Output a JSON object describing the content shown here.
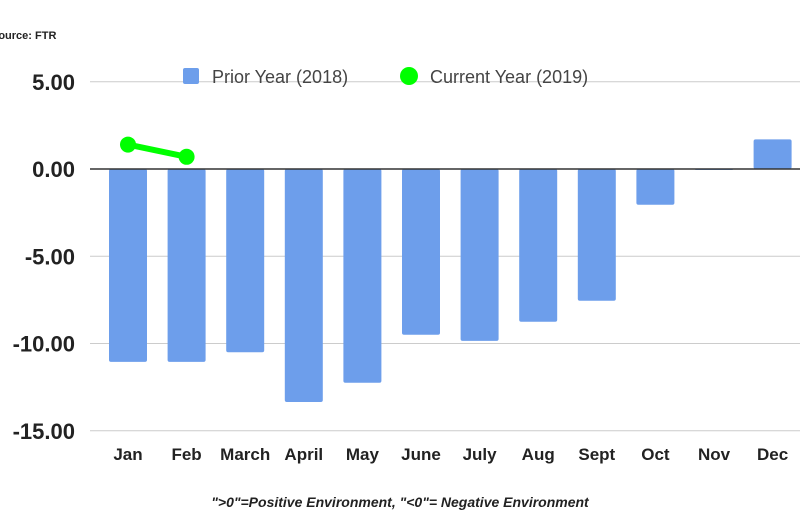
{
  "source": "Source: FTR",
  "footnote": "\">0\"=Positive Environment, \"<0\"= Negative Environment",
  "chart_data": {
    "type": "bar",
    "categories": [
      "Jan",
      "Feb",
      "March",
      "April",
      "May",
      "June",
      "July",
      "Aug",
      "Sept",
      "Oct",
      "Nov",
      "Dec"
    ],
    "series": [
      {
        "name": "Prior Year (2018)",
        "kind": "bar",
        "color": "#6d9eeb",
        "values": [
          -11.05,
          -11.05,
          -10.5,
          -13.35,
          -12.25,
          -9.5,
          -9.85,
          -8.75,
          -7.55,
          -2.05,
          -0.03,
          1.7
        ]
      },
      {
        "name": "Current Year (2019)",
        "kind": "line",
        "color": "#00ff00",
        "values": [
          1.4,
          0.7,
          null,
          null,
          null,
          null,
          null,
          null,
          null,
          null,
          null,
          null
        ]
      }
    ],
    "yticks": [
      "5.00",
      "0.00",
      "-5.00",
      "-10.00",
      "-15.00"
    ],
    "ytick_values": [
      5,
      0,
      -5,
      -10,
      -15
    ],
    "ylim": [
      -15,
      5
    ],
    "grid": true,
    "legend_position": "top"
  }
}
